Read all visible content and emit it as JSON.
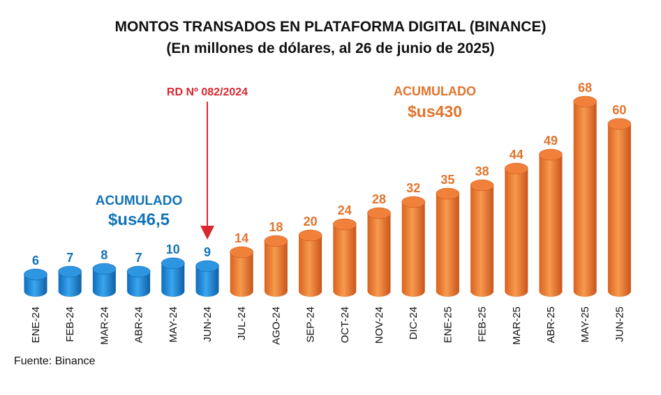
{
  "title": "MONTOS TRANSADOS EN PLATAFORMA DIGITAL (BINANCE)",
  "subtitle": "(En millones de dólares, al 26 de junio de 2025)",
  "source": "Fuente: Binance",
  "colors": {
    "blue": "#1E88D8",
    "blue_dark": "#0E63AE",
    "orange": "#EE7A2D",
    "orange_dark": "#C9581A",
    "red": "#D7282F",
    "blue_text": "#1273B8",
    "orange_text": "#E2732B"
  },
  "chart_data": {
    "type": "bar",
    "title": "MONTOS TRANSADOS EN PLATAFORMA DIGITAL (BINANCE)",
    "subtitle": "(En millones de dólares, al 26 de junio de 2025)",
    "categories": [
      "ENE-24",
      "FEB-24",
      "MAR-24",
      "ABR-24",
      "MAY-24",
      "JUN-24",
      "JUL-24",
      "AGO-24",
      "SEP-24",
      "OCT-24",
      "NOV-24",
      "DIC-24",
      "ENE-25",
      "FEB-25",
      "MAR-25",
      "ABR-25",
      "MAY-25",
      "JUN-25"
    ],
    "values": [
      6,
      7,
      8,
      7,
      10,
      9,
      14,
      18,
      20,
      24,
      28,
      32,
      35,
      38,
      44,
      49,
      68,
      60
    ],
    "bar_groups": [
      "blue",
      "blue",
      "blue",
      "blue",
      "blue",
      "blue",
      "orange",
      "orange",
      "orange",
      "orange",
      "orange",
      "orange",
      "orange",
      "orange",
      "orange",
      "orange",
      "orange",
      "orange"
    ],
    "xlabel": "",
    "ylabel": "",
    "grid": false,
    "annotations": {
      "regulation": "RD Nº 082/2024",
      "cumulative_blue_label": "ACUMULADO",
      "cumulative_blue_value": "$us46,5",
      "cumulative_orange_label": "ACUMULADO",
      "cumulative_orange_value": "$us430"
    }
  }
}
